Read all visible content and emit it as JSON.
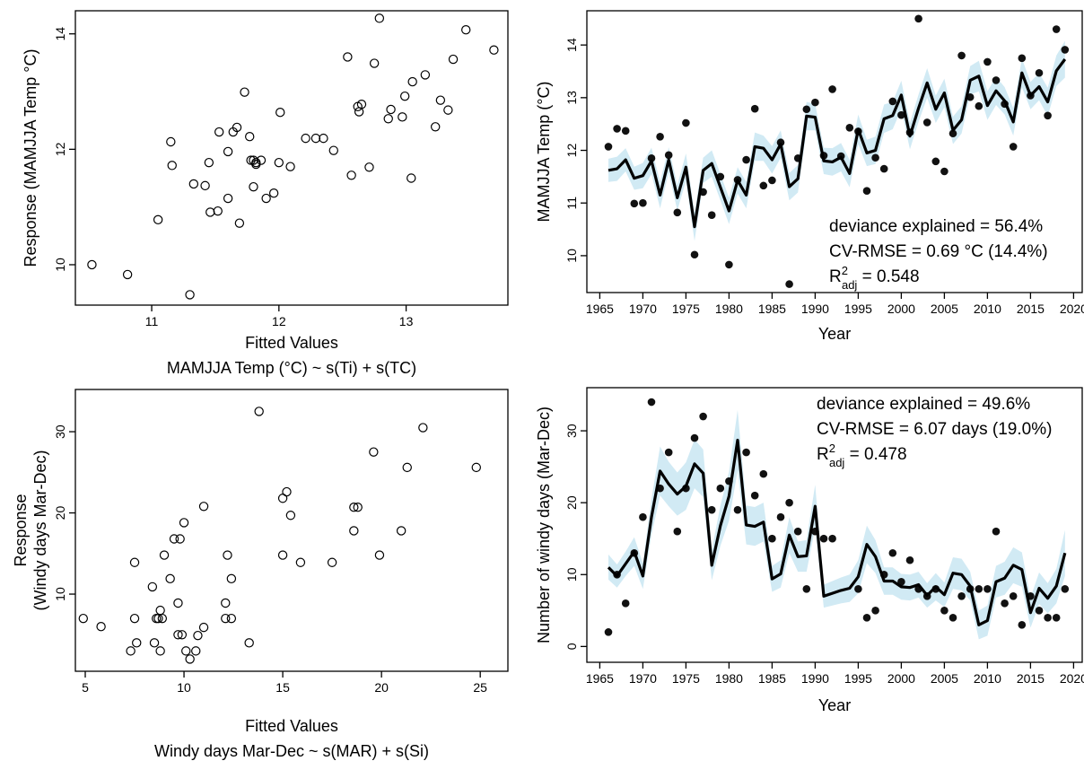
{
  "chart_data": [
    {
      "type": "scatter",
      "panel": "top-left",
      "xlabel": "Fitted Values",
      "ylabel": "Response (MAMJJA Temp °C)",
      "subtitle": "MAMJJA Temp (°C) ~ s(Ti) + s(TC)",
      "xlim": [
        10.4,
        13.8
      ],
      "ylim": [
        9.3,
        14.4
      ],
      "xticks": [
        11,
        12,
        13
      ],
      "yticks": [
        10,
        12,
        14
      ],
      "points": [
        [
          10.53,
          10.0
        ],
        [
          10.81,
          9.83
        ],
        [
          11.05,
          10.78
        ],
        [
          11.15,
          12.13
        ],
        [
          11.16,
          11.72
        ],
        [
          11.3,
          9.48
        ],
        [
          11.33,
          11.4
        ],
        [
          11.42,
          11.37
        ],
        [
          11.45,
          11.77
        ],
        [
          11.46,
          10.91
        ],
        [
          11.52,
          10.93
        ],
        [
          11.53,
          12.3
        ],
        [
          11.6,
          11.96
        ],
        [
          11.6,
          11.15
        ],
        [
          11.64,
          12.3
        ],
        [
          11.67,
          12.38
        ],
        [
          11.69,
          10.72
        ],
        [
          11.73,
          12.99
        ],
        [
          11.77,
          12.22
        ],
        [
          11.78,
          11.81
        ],
        [
          11.8,
          11.81
        ],
        [
          11.8,
          11.35
        ],
        [
          11.82,
          11.77
        ],
        [
          11.82,
          11.74
        ],
        [
          11.86,
          11.81
        ],
        [
          11.9,
          11.15
        ],
        [
          11.96,
          11.24
        ],
        [
          12.0,
          11.77
        ],
        [
          12.01,
          12.64
        ],
        [
          12.09,
          11.7
        ],
        [
          12.21,
          12.19
        ],
        [
          12.29,
          12.19
        ],
        [
          12.35,
          12.19
        ],
        [
          12.43,
          11.98
        ],
        [
          12.54,
          13.6
        ],
        [
          12.57,
          11.55
        ],
        [
          12.62,
          12.74
        ],
        [
          12.63,
          12.65
        ],
        [
          12.65,
          12.78
        ],
        [
          12.71,
          11.69
        ],
        [
          12.75,
          13.49
        ],
        [
          12.79,
          14.27
        ],
        [
          12.86,
          12.53
        ],
        [
          12.88,
          12.69
        ],
        [
          12.97,
          12.56
        ],
        [
          12.99,
          12.92
        ],
        [
          13.04,
          11.5
        ],
        [
          13.05,
          13.17
        ],
        [
          13.15,
          13.29
        ],
        [
          13.23,
          12.39
        ],
        [
          13.27,
          12.85
        ],
        [
          13.33,
          12.68
        ],
        [
          13.37,
          13.56
        ],
        [
          13.47,
          14.07
        ],
        [
          13.69,
          13.72
        ]
      ]
    },
    {
      "type": "line",
      "panel": "top-right",
      "xlabel": "Year",
      "ylabel": "MAMJJA Temp (°C)",
      "xlim": [
        1963.5,
        2021
      ],
      "ylim": [
        9.3,
        14.65
      ],
      "xticks": [
        1965,
        1970,
        1975,
        1980,
        1985,
        1990,
        1995,
        2000,
        2005,
        2010,
        2015,
        2020
      ],
      "yticks": [
        10,
        11,
        12,
        13,
        14
      ],
      "annotations": {
        "deviance": "deviance explained = 56.4%",
        "cvrmse": "CV-RMSE = 0.69 °C (14.4%)",
        "r2_prefix": "R",
        "r2_sup": "2",
        "r2_sub": "adj",
        "r2_value": " = 0.548"
      },
      "years": [
        1966,
        1967,
        1968,
        1969,
        1970,
        1971,
        1972,
        1973,
        1974,
        1975,
        1976,
        1977,
        1978,
        1979,
        1980,
        1981,
        1982,
        1983,
        1984,
        1985,
        1986,
        1987,
        1988,
        1989,
        1990,
        1991,
        1992,
        1993,
        1994,
        1995,
        1996,
        1997,
        1998,
        1999,
        2000,
        2001,
        2002,
        2003,
        2004,
        2005,
        2006,
        2007,
        2008,
        2009,
        2010,
        2011,
        2012,
        2013,
        2014,
        2015,
        2016,
        2017,
        2018,
        2019
      ],
      "observed": [
        12.07,
        12.41,
        12.37,
        10.99,
        11.0,
        11.85,
        12.26,
        11.91,
        10.82,
        12.52,
        10.02,
        11.21,
        10.77,
        11.5,
        9.83,
        11.44,
        11.82,
        12.79,
        11.33,
        11.43,
        12.15,
        9.46,
        11.85,
        12.78,
        12.91,
        11.9,
        13.16,
        11.89,
        12.43,
        12.36,
        11.23,
        11.86,
        11.65,
        12.93,
        12.67,
        12.34,
        14.5,
        12.53,
        11.79,
        11.6,
        12.32,
        13.8,
        13.01,
        12.84,
        13.68,
        13.33,
        12.88,
        12.07,
        13.75,
        13.04,
        13.47,
        12.66,
        14.3,
        13.91
      ],
      "fitted": [
        11.62,
        11.65,
        11.82,
        11.47,
        11.52,
        11.8,
        11.15,
        11.82,
        11.1,
        11.68,
        10.55,
        11.62,
        11.75,
        11.3,
        10.85,
        11.43,
        11.15,
        12.07,
        12.04,
        11.82,
        12.12,
        11.31,
        11.46,
        12.65,
        12.63,
        11.8,
        11.78,
        11.87,
        11.56,
        12.4,
        11.95,
        12.0,
        12.6,
        12.66,
        13.05,
        12.27,
        12.8,
        13.28,
        12.78,
        13.09,
        12.38,
        12.58,
        13.33,
        13.41,
        12.85,
        13.13,
        12.94,
        12.54,
        13.47,
        13.04,
        13.21,
        12.92,
        13.51,
        13.73
      ],
      "lower": [
        11.4,
        11.42,
        11.6,
        11.25,
        11.28,
        11.55,
        10.9,
        11.58,
        10.86,
        11.42,
        10.28,
        11.38,
        11.5,
        11.05,
        10.6,
        11.18,
        10.9,
        11.8,
        11.8,
        11.56,
        11.86,
        11.05,
        11.2,
        12.38,
        12.38,
        11.55,
        11.52,
        11.6,
        11.3,
        12.12,
        11.7,
        11.74,
        12.33,
        12.4,
        12.78,
        12.02,
        12.54,
        13.0,
        12.52,
        12.82,
        12.12,
        12.32,
        13.06,
        13.12,
        12.58,
        12.86,
        12.68,
        12.28,
        13.2,
        12.78,
        12.95,
        12.65,
        13.22,
        13.38
      ],
      "upper": [
        11.84,
        11.88,
        12.04,
        11.69,
        11.76,
        12.05,
        11.4,
        12.06,
        11.34,
        11.94,
        10.82,
        11.86,
        12.0,
        11.55,
        11.1,
        11.68,
        11.4,
        12.34,
        12.28,
        12.08,
        12.38,
        11.57,
        11.72,
        12.92,
        12.88,
        12.05,
        12.04,
        12.14,
        11.82,
        12.68,
        12.2,
        12.26,
        12.87,
        12.92,
        13.32,
        12.52,
        13.06,
        13.56,
        13.04,
        13.36,
        12.64,
        12.84,
        13.6,
        13.7,
        13.12,
        13.4,
        13.2,
        12.8,
        13.74,
        13.3,
        13.47,
        13.19,
        13.8,
        14.08
      ]
    },
    {
      "type": "scatter",
      "panel": "bottom-left",
      "xlabel": "Fitted Values",
      "ylabel": [
        "Response",
        "(Windy days Mar-Dec)"
      ],
      "subtitle": "Windy days Mar-Dec ~ s(MAR) + s(Si)",
      "xlim": [
        4.5,
        26.4
      ],
      "ylim": [
        0.5,
        35.2
      ],
      "xticks": [
        5,
        10,
        15,
        20,
        25
      ],
      "yticks": [
        10,
        20,
        30
      ],
      "points": [
        [
          4.9,
          7.0
        ],
        [
          5.8,
          6.0
        ],
        [
          7.3,
          3.0
        ],
        [
          7.5,
          13.9
        ],
        [
          7.5,
          7.0
        ],
        [
          7.6,
          4.0
        ],
        [
          8.4,
          10.9
        ],
        [
          8.5,
          4.0
        ],
        [
          8.6,
          7.0
        ],
        [
          8.7,
          7.0
        ],
        [
          8.8,
          3.0
        ],
        [
          8.8,
          8.0
        ],
        [
          8.9,
          7.0
        ],
        [
          9.0,
          14.8
        ],
        [
          9.3,
          11.9
        ],
        [
          9.5,
          16.8
        ],
        [
          9.7,
          5.0
        ],
        [
          9.7,
          8.9
        ],
        [
          9.8,
          16.8
        ],
        [
          9.9,
          5.0
        ],
        [
          10.0,
          18.8
        ],
        [
          10.1,
          3.0
        ],
        [
          10.3,
          2.0
        ],
        [
          10.6,
          3.0
        ],
        [
          10.7,
          4.9
        ],
        [
          11.0,
          20.8
        ],
        [
          11.0,
          5.9
        ],
        [
          12.1,
          7.0
        ],
        [
          12.1,
          8.9
        ],
        [
          12.2,
          14.8
        ],
        [
          12.4,
          11.9
        ],
        [
          12.4,
          7.0
        ],
        [
          13.3,
          4.0
        ],
        [
          13.8,
          32.5
        ],
        [
          15.0,
          14.8
        ],
        [
          15.0,
          21.8
        ],
        [
          15.2,
          22.6
        ],
        [
          15.4,
          19.7
        ],
        [
          15.9,
          13.9
        ],
        [
          17.5,
          13.9
        ],
        [
          18.6,
          17.8
        ],
        [
          18.6,
          20.7
        ],
        [
          18.8,
          20.7
        ],
        [
          19.6,
          27.5
        ],
        [
          19.9,
          14.8
        ],
        [
          21.0,
          17.8
        ],
        [
          21.3,
          25.6
        ],
        [
          22.1,
          30.5
        ],
        [
          24.8,
          25.6
        ]
      ]
    },
    {
      "type": "line",
      "panel": "bottom-right",
      "xlabel": "Year",
      "ylabel": "Number of windy days (Mar-Dec)",
      "xlim": [
        1963.5,
        2021
      ],
      "ylim": [
        -2.2,
        36
      ],
      "xticks": [
        1965,
        1970,
        1975,
        1980,
        1985,
        1990,
        1995,
        2000,
        2005,
        2010,
        2015,
        2020
      ],
      "yticks": [
        0,
        10,
        20,
        30
      ],
      "annotations": {
        "deviance": "deviance explained = 49.6%",
        "cvrmse": "CV-RMSE = 6.07 days (19.0%)",
        "r2_prefix": "R",
        "r2_sup": "2",
        "r2_sub": "adj",
        "r2_value": " = 0.478"
      },
      "years": [
        1966,
        1967,
        1968,
        1969,
        1970,
        1971,
        1972,
        1973,
        1974,
        1975,
        1976,
        1977,
        1978,
        1979,
        1980,
        1981,
        1982,
        1983,
        1984,
        1985,
        1986,
        1987,
        1988,
        1989,
        1990,
        1991,
        1992,
        1993,
        1994,
        1995,
        1996,
        1997,
        1998,
        1999,
        2000,
        2001,
        2002,
        2003,
        2004,
        2005,
        2006,
        2007,
        2008,
        2009,
        2010,
        2011,
        2012,
        2013,
        2014,
        2015,
        2016,
        2017,
        2018,
        2019
      ],
      "observed": [
        2,
        10,
        6,
        13,
        18,
        34,
        22,
        27,
        16,
        22,
        29,
        32,
        19,
        22,
        23,
        19,
        27,
        21,
        24,
        15,
        18,
        20,
        16,
        8,
        16,
        15,
        15,
        null,
        null,
        8,
        4,
        5,
        10,
        13,
        9,
        12,
        8,
        7,
        8,
        5,
        4,
        7,
        8,
        8,
        8,
        16,
        6,
        7,
        3,
        7,
        5,
        4,
        4,
        8
      ],
      "fitted": [
        11.0,
        9.8,
        11.5,
        13.2,
        9.8,
        18.0,
        24.4,
        22.6,
        21.2,
        22.3,
        25.4,
        24.1,
        11.3,
        16.8,
        20.9,
        28.7,
        16.9,
        16.7,
        17.3,
        9.4,
        10.1,
        15.5,
        12.5,
        12.6,
        19.5,
        7.0,
        7.4,
        7.8,
        8.1,
        9.7,
        14.2,
        12.5,
        9.1,
        9.1,
        8.3,
        8.2,
        8.6,
        7.1,
        8.3,
        7.2,
        10.2,
        10.0,
        8.4,
        3.0,
        3.6,
        9.0,
        9.5,
        11.3,
        10.7,
        4.7,
        8.1,
        6.7,
        8.4,
        13.0
      ],
      "lower": [
        9.3,
        8.2,
        9.8,
        11.2,
        8.0,
        15.5,
        21.0,
        19.5,
        18.2,
        19.0,
        22.0,
        20.8,
        9.2,
        14.0,
        17.5,
        24.5,
        14.2,
        14.0,
        14.6,
        7.6,
        8.2,
        13.0,
        10.4,
        10.4,
        16.5,
        5.4,
        5.7,
        6.0,
        6.2,
        7.4,
        11.6,
        10.2,
        7.2,
        7.2,
        6.5,
        6.4,
        6.8,
        5.4,
        6.4,
        5.5,
        8.0,
        7.8,
        6.4,
        1.0,
        1.5,
        6.8,
        7.2,
        8.8,
        8.3,
        2.6,
        5.9,
        4.6,
        6.0,
        9.8
      ],
      "upper": [
        12.8,
        11.4,
        13.2,
        15.2,
        11.6,
        20.5,
        27.8,
        25.7,
        24.2,
        25.6,
        28.8,
        27.4,
        13.4,
        19.6,
        24.3,
        32.9,
        19.6,
        19.4,
        20.0,
        11.2,
        12.0,
        18.0,
        14.6,
        14.8,
        22.5,
        8.6,
        9.1,
        9.6,
        10.0,
        12.0,
        16.8,
        14.8,
        11.0,
        11.0,
        10.1,
        10.0,
        10.4,
        8.8,
        10.2,
        8.9,
        12.4,
        12.2,
        10.4,
        5.0,
        5.7,
        11.2,
        11.8,
        13.8,
        13.1,
        6.8,
        10.3,
        8.8,
        10.8,
        16.2
      ]
    }
  ]
}
